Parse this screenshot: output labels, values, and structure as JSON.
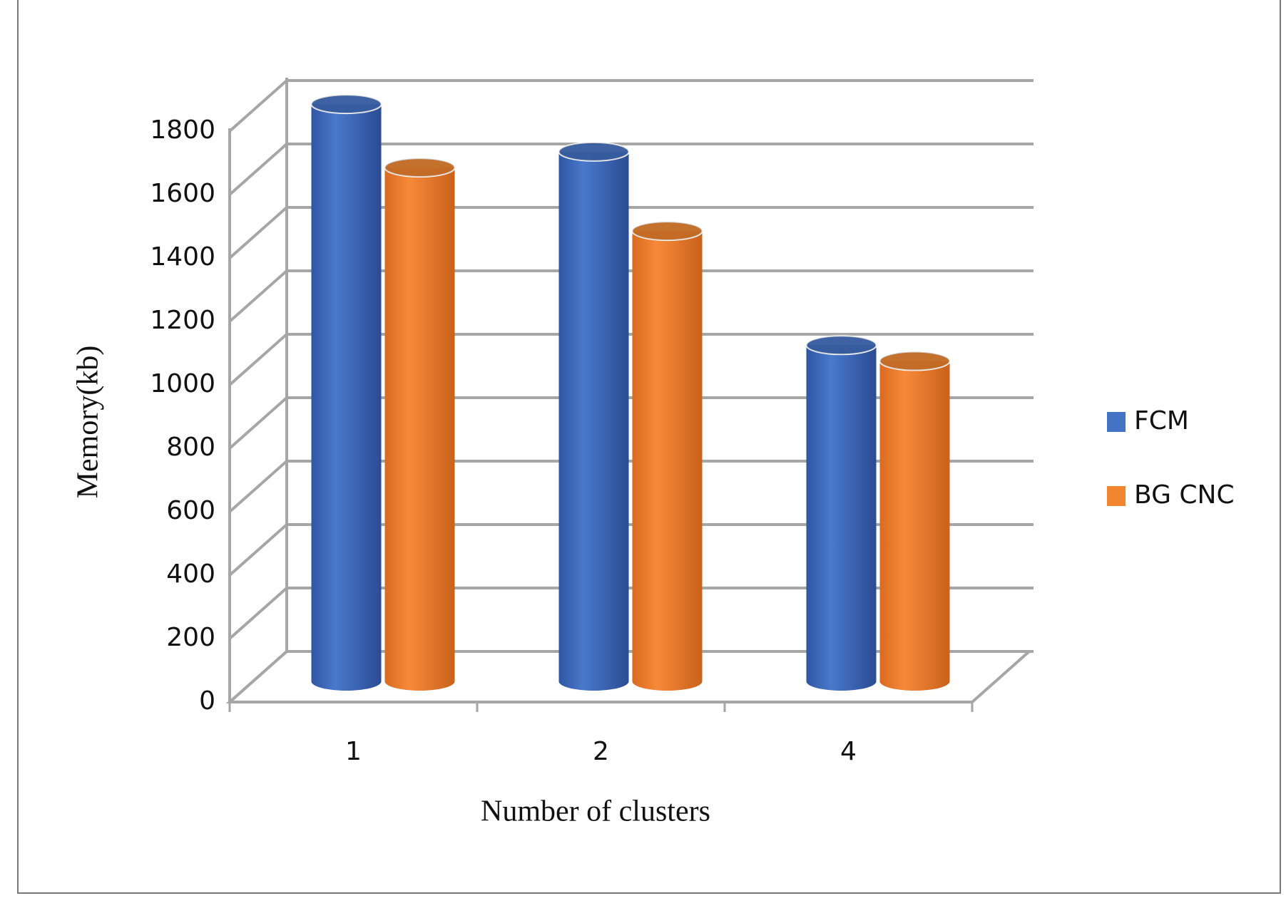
{
  "chart_data": {
    "type": "bar3d",
    "x_label": "Number of clusters",
    "y_label": "Memory(kb)",
    "categories": [
      "1",
      "2",
      "4"
    ],
    "series": [
      {
        "name": "FCM",
        "color": "#4472c4",
        "values": [
          1820,
          1670,
          1060
        ]
      },
      {
        "name": "BG CNC",
        "color": "#f0842f",
        "values": [
          1620,
          1420,
          1010
        ]
      }
    ],
    "ylim": [
      0,
      1800
    ],
    "yticks": [
      0,
      200,
      400,
      600,
      800,
      1000,
      1200,
      1400,
      1600,
      1800
    ],
    "grid": true,
    "legend": "right"
  }
}
